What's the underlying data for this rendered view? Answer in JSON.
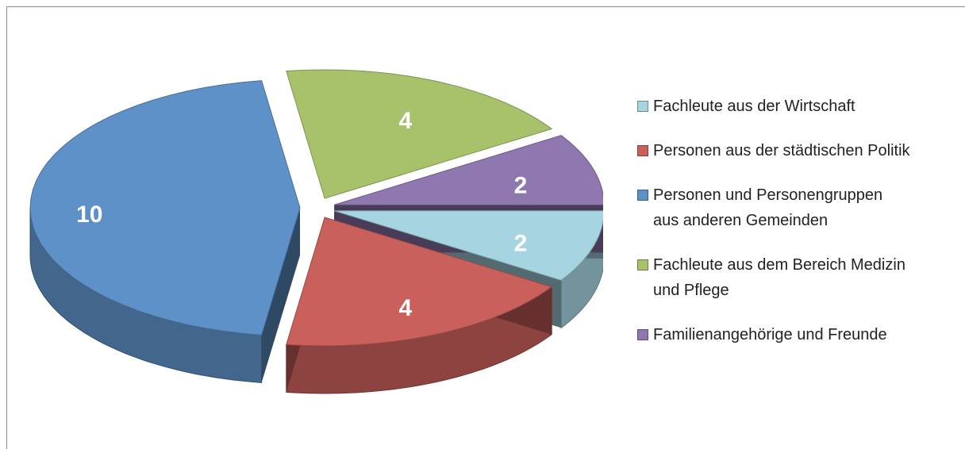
{
  "chart_data": {
    "type": "pie",
    "categories": [
      "Fachleute aus der Wirtschaft",
      "Personen aus der städtischen Politik",
      "Personen und Personengruppen aus anderen Gemeinden",
      "Fachleute aus dem Bereich Medizin und Pflege",
      "Familienangehörige und Freunde"
    ],
    "values": [
      2,
      4,
      10,
      4,
      2
    ],
    "colors": [
      "#a6d4e0",
      "#c9605c",
      "#5e91c8",
      "#a8c26c",
      "#8f78b0"
    ]
  }
}
